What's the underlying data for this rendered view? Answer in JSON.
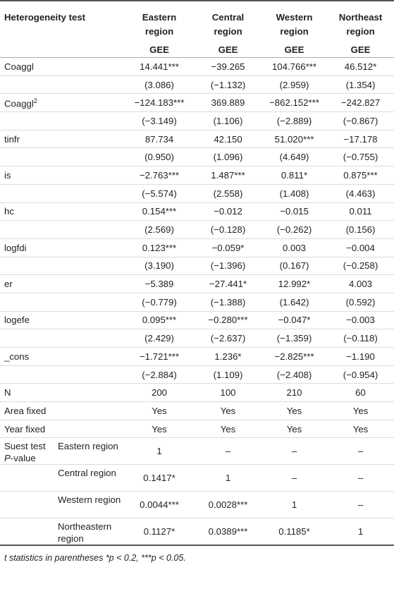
{
  "header": {
    "label": "Heterogeneity test",
    "columns": [
      {
        "line1": "Eastern",
        "line2": "region",
        "method": "GEE"
      },
      {
        "line1": "Central",
        "line2": "region",
        "method": "GEE"
      },
      {
        "line1": "Western",
        "line2": "region",
        "method": "GEE"
      },
      {
        "line1": "Northeast",
        "line2": "region",
        "method": "GEE"
      }
    ]
  },
  "rows": [
    {
      "label": "Coaggl",
      "values": [
        "14.441***",
        "−39.265",
        "104.766***",
        "46.512*"
      ]
    },
    {
      "label": "",
      "values": [
        "(3.086)",
        "(−1.132)",
        "(2.959)",
        "(1.354)"
      ]
    },
    {
      "label": "Coaggl",
      "sup": "2",
      "values": [
        "−124.183***",
        "369.889",
        "−862.152***",
        "−242.827"
      ]
    },
    {
      "label": "",
      "values": [
        "(−3.149)",
        "(1.106)",
        "(−2.889)",
        "(−0.867)"
      ]
    },
    {
      "label": "tinfr",
      "values": [
        "87.734",
        "42.150",
        "51.020***",
        "−17.178"
      ]
    },
    {
      "label": "",
      "values": [
        "(0.950)",
        "(1.096)",
        "(4.649)",
        "(−0.755)"
      ]
    },
    {
      "label": "is",
      "values": [
        "−2.763***",
        "1.487***",
        "0.811*",
        "0.875***"
      ]
    },
    {
      "label": "",
      "values": [
        "(−5.574)",
        "(2.558)",
        "(1.408)",
        "(4.463)"
      ]
    },
    {
      "label": "hc",
      "values": [
        "0.154***",
        "−0.012",
        "−0.015",
        "0.011"
      ]
    },
    {
      "label": "",
      "values": [
        "(2.569)",
        "(−0.128)",
        "(−0.262)",
        "(0.156)"
      ]
    },
    {
      "label": "logfdi",
      "values": [
        "0.123***",
        "−0.059*",
        "0.003",
        "−0.004"
      ]
    },
    {
      "label": "",
      "values": [
        "(3.190)",
        "(−1.396)",
        "(0.167)",
        "(−0.258)"
      ]
    },
    {
      "label": "er",
      "values": [
        "−5.389",
        "−27.441*",
        "12.992*",
        "4.003"
      ]
    },
    {
      "label": "",
      "values": [
        "(−0.779)",
        "(−1.388)",
        "(1.642)",
        "(0.592)"
      ]
    },
    {
      "label": "logefe",
      "values": [
        "0.095***",
        "−0.280***",
        "−0.047*",
        "−0.003"
      ]
    },
    {
      "label": "",
      "values": [
        "(2.429)",
        "(−2.637)",
        "(−1.359)",
        "(−0.118)"
      ]
    },
    {
      "label": "_cons",
      "values": [
        "−1.721***",
        "1.236*",
        "−2.825***",
        "−1.190"
      ]
    },
    {
      "label": "",
      "values": [
        "(−2.884)",
        "(1.109)",
        "(−2.408)",
        "(−0.954)"
      ]
    },
    {
      "label": "N",
      "values": [
        "200",
        "100",
        "210",
        "60"
      ]
    },
    {
      "label": "Area fixed",
      "values": [
        "Yes",
        "Yes",
        "Yes",
        "Yes"
      ]
    },
    {
      "label": "Year fixed",
      "values": [
        "Yes",
        "Yes",
        "Yes",
        "Yes"
      ]
    }
  ],
  "suest": {
    "label_line1": "Suest test",
    "label_pvalue": "P",
    "label_suffix": "-value",
    "rows": [
      {
        "label": "Eastern region",
        "values": [
          "1",
          "–",
          "–",
          "–"
        ]
      },
      {
        "label": "Central region",
        "values": [
          "0.1417*",
          "1",
          "–",
          "–"
        ]
      },
      {
        "label": "Western region",
        "values": [
          "0.0044***",
          "0.0028***",
          "1",
          "–"
        ]
      },
      {
        "label": "Northeastern region",
        "values": [
          "0.1127*",
          "0.0389***",
          "0.1185*",
          "1"
        ]
      }
    ]
  },
  "note": "t statistics in parentheses *p < 0.2, ***p < 0.05."
}
